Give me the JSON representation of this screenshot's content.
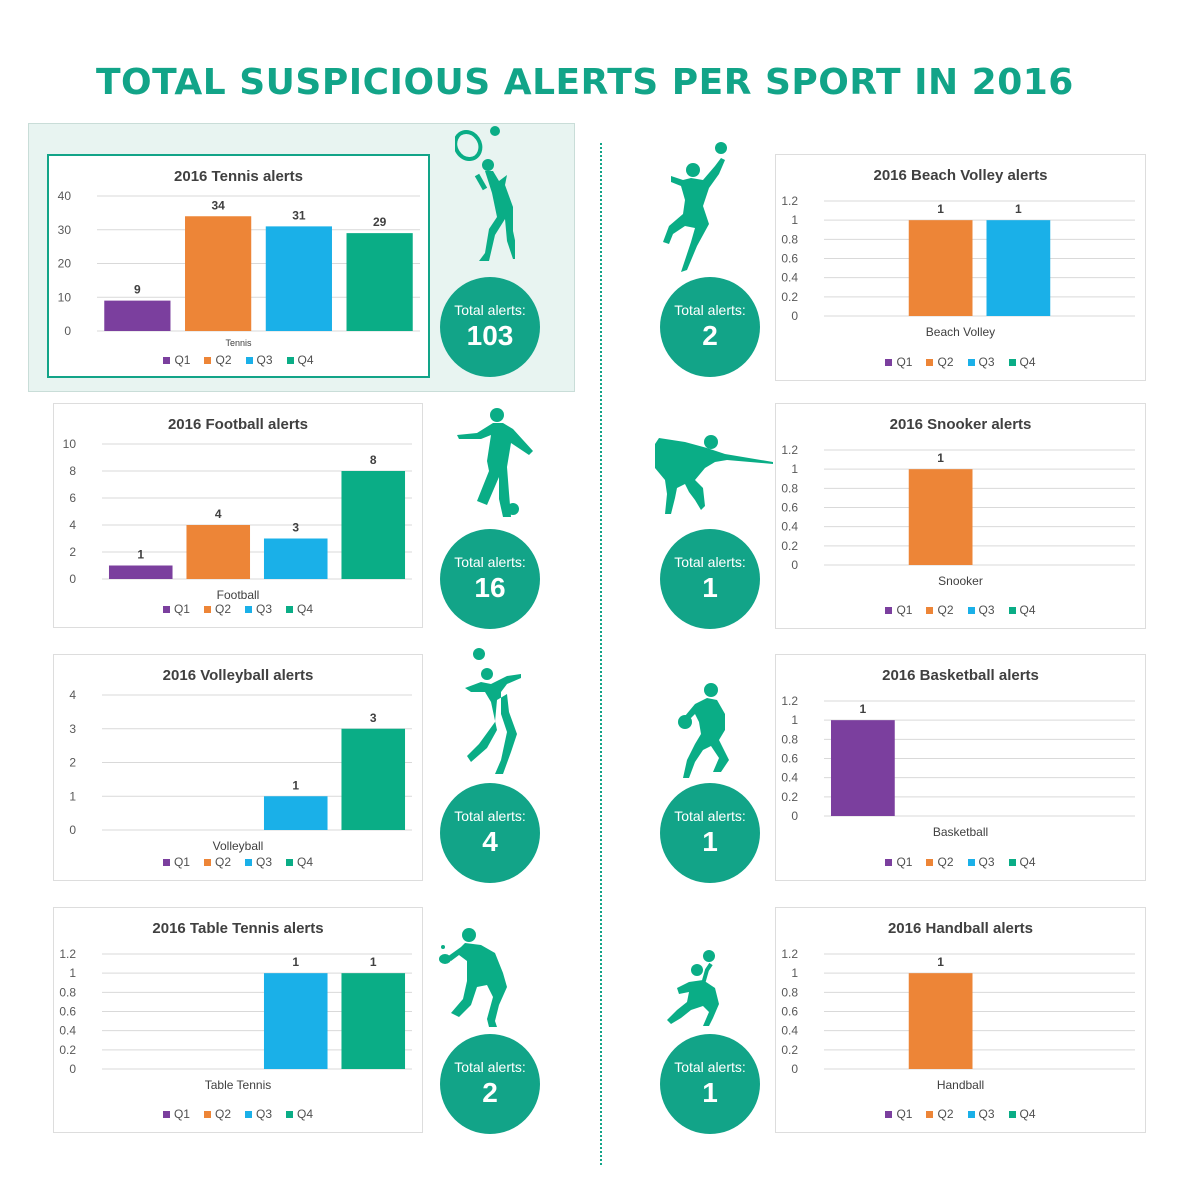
{
  "title": "TOTAL SUSPICIOUS ALERTS PER SPORT IN 2016",
  "colors": {
    "accent": "#12a488",
    "Q1": "#7b3f9e",
    "Q2": "#ed8537",
    "Q3": "#1ab0e8",
    "Q4": "#0aad86"
  },
  "legend": [
    "Q1",
    "Q2",
    "Q3",
    "Q4"
  ],
  "total_label": "Total alerts:",
  "chart_data": [
    {
      "type": "bar",
      "title": "2016 Tennis alerts",
      "xlabel": "Tennis",
      "categories": [
        "Q1",
        "Q2",
        "Q3",
        "Q4"
      ],
      "values": [
        9,
        34,
        31,
        29
      ],
      "ylim": [
        0,
        40
      ],
      "yticks": [
        "0",
        "10",
        "20",
        "30",
        "40"
      ],
      "total": "103",
      "legend_position": "bottom"
    },
    {
      "type": "bar",
      "title": "2016 Football alerts",
      "xlabel": "Football",
      "categories": [
        "Q1",
        "Q2",
        "Q3",
        "Q4"
      ],
      "values": [
        1,
        4,
        3,
        8
      ],
      "ylim": [
        0,
        10
      ],
      "yticks": [
        "0",
        "2",
        "4",
        "6",
        "8",
        "10"
      ],
      "total": "16",
      "legend_position": "bottom"
    },
    {
      "type": "bar",
      "title": "2016 Volleyball alerts",
      "xlabel": "Volleyball",
      "categories": [
        "Q1",
        "Q2",
        "Q3",
        "Q4"
      ],
      "values": [
        null,
        null,
        1,
        3
      ],
      "ylim": [
        0,
        4
      ],
      "yticks": [
        "0",
        "1",
        "2",
        "3",
        "4"
      ],
      "total": "4",
      "legend_position": "bottom"
    },
    {
      "type": "bar",
      "title": "2016 Table Tennis alerts",
      "xlabel": "Table Tennis",
      "categories": [
        "Q1",
        "Q2",
        "Q3",
        "Q4"
      ],
      "values": [
        null,
        null,
        1,
        1
      ],
      "ylim": [
        0,
        1.2
      ],
      "yticks": [
        "0",
        "0.2",
        "0.4",
        "0.6",
        "0.8",
        "1",
        "1.2"
      ],
      "total": "2",
      "legend_position": "bottom"
    },
    {
      "type": "bar",
      "title": "2016 Beach Volley alerts",
      "xlabel": "Beach Volley",
      "categories": [
        "Q1",
        "Q2",
        "Q3",
        "Q4"
      ],
      "values": [
        null,
        1,
        1,
        null
      ],
      "ylim": [
        0,
        1.2
      ],
      "yticks": [
        "0",
        "0.2",
        "0.4",
        "0.6",
        "0.8",
        "1",
        "1.2"
      ],
      "total": "2",
      "legend_position": "bottom"
    },
    {
      "type": "bar",
      "title": "2016 Snooker alerts",
      "xlabel": "Snooker",
      "categories": [
        "Q1",
        "Q2",
        "Q3",
        "Q4"
      ],
      "values": [
        null,
        1,
        null,
        null
      ],
      "ylim": [
        0,
        1.2
      ],
      "yticks": [
        "0",
        "0.2",
        "0.4",
        "0.6",
        "0.8",
        "1",
        "1.2"
      ],
      "total": "1",
      "legend_position": "bottom"
    },
    {
      "type": "bar",
      "title": "2016 Basketball alerts",
      "xlabel": "Basketball",
      "categories": [
        "Q1",
        "Q2",
        "Q3",
        "Q4"
      ],
      "values": [
        1,
        null,
        null,
        null
      ],
      "ylim": [
        0,
        1.2
      ],
      "yticks": [
        "0",
        "0.2",
        "0.4",
        "0.6",
        "0.8",
        "1",
        "1.2"
      ],
      "total": "1",
      "legend_position": "bottom"
    },
    {
      "type": "bar",
      "title": "2016 Handball alerts",
      "xlabel": "Handball",
      "categories": [
        "Q1",
        "Q2",
        "Q3",
        "Q4"
      ],
      "values": [
        null,
        1,
        null,
        null
      ],
      "ylim": [
        0,
        1.2
      ],
      "yticks": [
        "0",
        "0.2",
        "0.4",
        "0.6",
        "0.8",
        "1",
        "1.2"
      ],
      "total": "1",
      "legend_position": "bottom"
    }
  ],
  "icons": [
    "tennis-player-icon",
    "football-player-icon",
    "volleyball-player-icon",
    "table-tennis-player-icon",
    "beach-volley-player-icon",
    "snooker-player-icon",
    "basketball-player-icon",
    "handball-player-icon"
  ]
}
